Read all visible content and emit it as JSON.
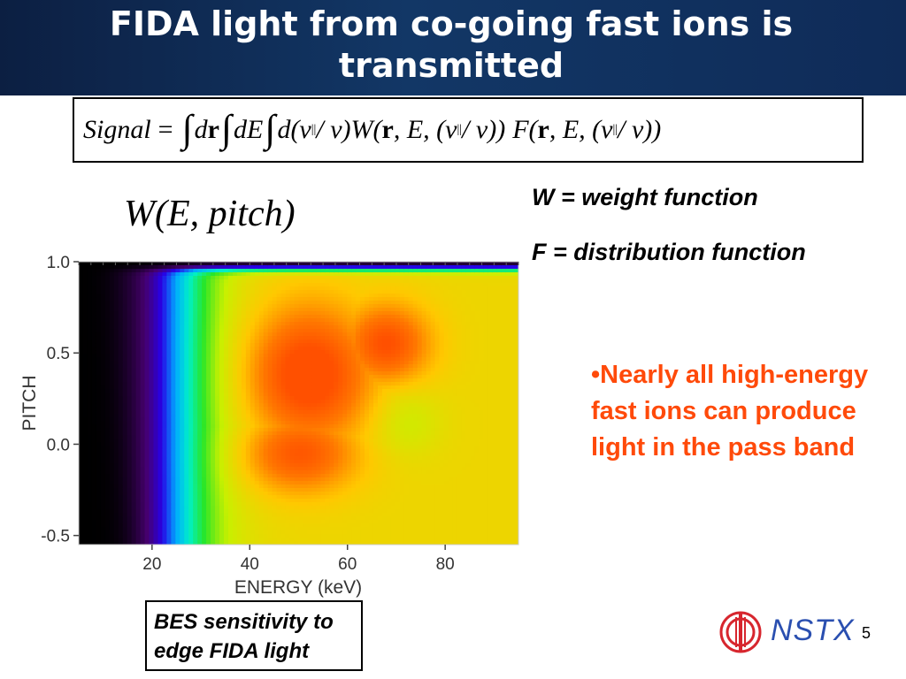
{
  "slide": {
    "title": "FIDA light from co-going fast ions is transmitted",
    "formula": {
      "signal": "Signal",
      "equals": "=",
      "integral": "∫",
      "d_r": "d",
      "r": "r",
      "d_E": "dE",
      "d_pitch_open": "d(v",
      "parallel": "||",
      "over_v": "/ v)",
      "W_open": "W(",
      "r2": "r",
      "E_mid": ", E, (v",
      "over_v_close": "/ v))",
      "F_open": "F(",
      "r3": "r",
      "E_mid2": ", E, (v",
      "over_v_close2": "/ v))"
    },
    "w_label": "W(E, pitch)",
    "definitions": {
      "w": "W = weight function",
      "f": "F = distribution function"
    },
    "bullet": "•Nearly all high-energy fast ions can produce light in the pass band",
    "note": "BES sensitivity to edge FIDA light",
    "logo_text": "NSTX",
    "slide_number": "5",
    "colors": {
      "title_bg": "#123766",
      "bullet": "#ff4a0a",
      "logo": "#2a4fb0"
    }
  },
  "chart_data": {
    "type": "heatmap",
    "title": "",
    "xlabel": "ENERGY (keV)",
    "ylabel": "PITCH",
    "xlim": [
      5,
      95
    ],
    "ylim": [
      -0.55,
      1.0
    ],
    "xticks": [
      20,
      40,
      60,
      80
    ],
    "yticks": [
      -0.5,
      0.0,
      0.5,
      1.0
    ],
    "xtick_labels": [
      "20",
      "40",
      "60",
      "80"
    ],
    "ytick_labels": [
      "-0.5",
      "0.0",
      "0.5",
      "1.0"
    ],
    "colormap": "rainbow",
    "features": {
      "peak_region": {
        "energy_keV": [
          40,
          75
        ],
        "pitch": [
          -0.1,
          0.8
        ],
        "relative_level": 1.0
      },
      "zero_region": {
        "energy_keV": [
          5,
          12
        ],
        "relative_level": 0.0
      },
      "pitch_near_1": {
        "relative_level": 0.0
      }
    }
  }
}
